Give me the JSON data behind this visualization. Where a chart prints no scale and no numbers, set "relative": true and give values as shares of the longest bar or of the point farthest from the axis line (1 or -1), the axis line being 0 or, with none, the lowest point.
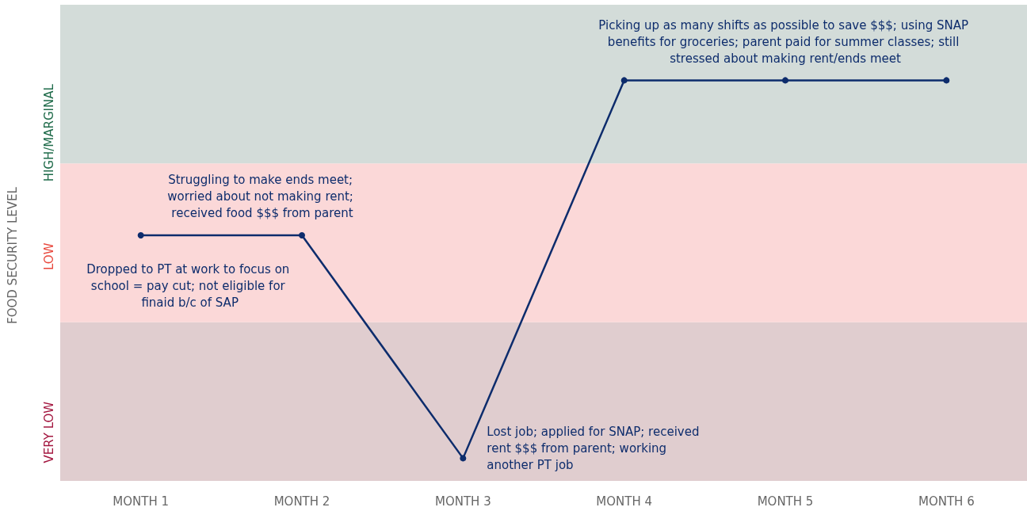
{
  "chart_data": {
    "type": "line",
    "ylabel": "FOOD SECURITY LEVEL",
    "relative": true,
    "categories": [
      "MONTH 1",
      "MONTH 2",
      "MONTH 3",
      "MONTH 4",
      "MONTH 5",
      "MONTH 6"
    ],
    "series": [
      {
        "color": "#0d2c6c",
        "values": [
          0.59,
          0.59,
          0,
          1,
          1,
          1
        ]
      }
    ],
    "bands": [
      {
        "axis": "y",
        "from": -0.06,
        "to": 0.36,
        "color": "#e0cdcf",
        "label": "VERY LOW"
      },
      {
        "axis": "y",
        "from": 0.36,
        "to": 0.78,
        "color": "#fbd8d8",
        "label": "LOW"
      },
      {
        "axis": "y",
        "from": 0.78,
        "to": 1.2,
        "color": "#d3dcd9",
        "label": "HIGH/MARGINAL"
      }
    ],
    "annotations": [
      {
        "text": "Dropped to PT at work to focus on school = pay cut; not eligible for finaid b/c of SAP",
        "x": "MONTH 1",
        "y": 0.59
      },
      {
        "text": "Struggling to make ends meet; worried about not making rent; received food $$$ from parent",
        "x": "MONTH 2",
        "y": 0.59
      },
      {
        "text": "Lost job; applied for SNAP; received rent $$$ from parent; working another PT job",
        "x": "MONTH 3",
        "y": 0
      },
      {
        "text": "Picking up as many shifts as possible to save $$$; using SNAP benefits for groceries; parent paid for summer classes; still stressed about making rent/ends meet",
        "x": "MONTH 5",
        "y": 1
      }
    ],
    "marker": "circle",
    "line_style": "solid",
    "grid": false
  }
}
